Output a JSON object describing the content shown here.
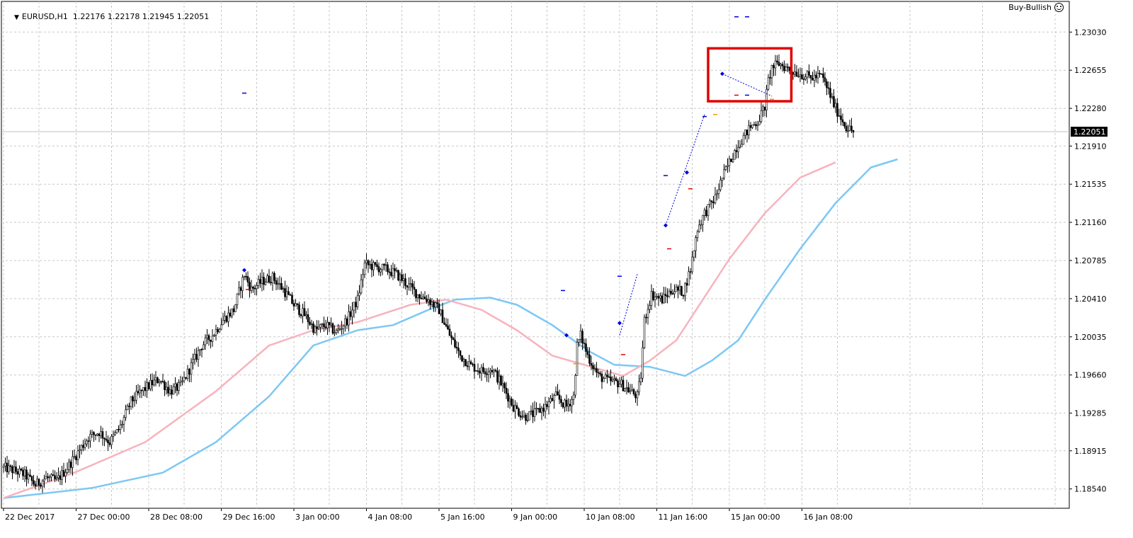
{
  "header": {
    "symbol": "EURUSD,H1",
    "ohlc": "1.22176 1.22178 1.21945 1.22051"
  },
  "expert": {
    "label": "Buy-Bullish",
    "icon": "smiley-icon"
  },
  "colors": {
    "background": "#ffffff",
    "grid": "#c8c8c8",
    "candle": "#000000",
    "ma_fast": "#f7b3bd",
    "ma_slow": "#7cc8f4",
    "highlight_box": "#e00000",
    "marker_blue": "#0000dd",
    "marker_red": "#e00000",
    "marker_orange": "#f0a000",
    "current_price_bg": "#000000"
  },
  "chart_data": {
    "type": "candlestick",
    "timeframe": "H1",
    "grid": true,
    "ylim": [
      1.1835,
      1.2322
    ],
    "y_ticks": [
      "1.23030",
      "1.22655",
      "1.22280",
      "1.21910",
      "1.21535",
      "1.21160",
      "1.20785",
      "1.20410",
      "1.20035",
      "1.19660",
      "1.19285",
      "1.18915",
      "1.18540"
    ],
    "current_price": "1.22051",
    "x_tick_labels": [
      {
        "bar": 0,
        "label": "22 Dec 2017"
      },
      {
        "bar": 41,
        "label": "27 Dec 00:00"
      },
      {
        "bar": 82,
        "label": "28 Dec 08:00"
      },
      {
        "bar": 123,
        "label": "29 Dec 16:00"
      },
      {
        "bar": 164,
        "label": "3 Jan 00:00"
      },
      {
        "bar": 205,
        "label": "4 Jan 08:00"
      },
      {
        "bar": 246,
        "label": "5 Jan 16:00"
      },
      {
        "bar": 287,
        "label": "9 Jan 00:00"
      },
      {
        "bar": 328,
        "label": "10 Jan 08:00"
      },
      {
        "bar": 369,
        "label": "11 Jan 16:00"
      },
      {
        "bar": 410,
        "label": "15 Jan 00:00"
      },
      {
        "bar": 451,
        "label": "16 Jan 08:00"
      }
    ],
    "price_path": [
      [
        0,
        1.1875
      ],
      [
        6,
        1.1872
      ],
      [
        12,
        1.1868
      ],
      [
        18,
        1.1858
      ],
      [
        24,
        1.1865
      ],
      [
        30,
        1.1862
      ],
      [
        36,
        1.1875
      ],
      [
        42,
        1.189
      ],
      [
        48,
        1.1905
      ],
      [
        54,
        1.191
      ],
      [
        60,
        1.19
      ],
      [
        66,
        1.1915
      ],
      [
        72,
        1.194
      ],
      [
        78,
        1.195
      ],
      [
        84,
        1.1958
      ],
      [
        88,
        1.1962
      ],
      [
        94,
        1.195
      ],
      [
        100,
        1.1955
      ],
      [
        106,
        1.1975
      ],
      [
        112,
        1.1995
      ],
      [
        118,
        1.2005
      ],
      [
        124,
        1.202
      ],
      [
        130,
        1.203
      ],
      [
        136,
        1.2065
      ],
      [
        140,
        1.205
      ],
      [
        146,
        1.2058
      ],
      [
        152,
        1.2062
      ],
      [
        158,
        1.205
      ],
      [
        164,
        1.2035
      ],
      [
        170,
        1.2025
      ],
      [
        176,
        1.201
      ],
      [
        182,
        1.2015
      ],
      [
        188,
        1.2008
      ],
      [
        194,
        1.202
      ],
      [
        200,
        1.204
      ],
      [
        204,
        1.2075
      ],
      [
        210,
        1.2072
      ],
      [
        216,
        1.207
      ],
      [
        222,
        1.2065
      ],
      [
        228,
        1.2055
      ],
      [
        234,
        1.2045
      ],
      [
        240,
        1.204
      ],
      [
        246,
        1.203
      ],
      [
        252,
        1.2005
      ],
      [
        258,
        1.1985
      ],
      [
        264,
        1.1975
      ],
      [
        270,
        1.197
      ],
      [
        276,
        1.1972
      ],
      [
        282,
        1.1955
      ],
      [
        288,
        1.1935
      ],
      [
        294,
        1.1925
      ],
      [
        300,
        1.1928
      ],
      [
        306,
        1.1935
      ],
      [
        312,
        1.1945
      ],
      [
        318,
        1.1935
      ],
      [
        322,
        1.1945
      ],
      [
        324,
        1.1995
      ],
      [
        326,
        1.2005
      ],
      [
        330,
        1.1985
      ],
      [
        336,
        1.1965
      ],
      [
        342,
        1.196
      ],
      [
        348,
        1.1958
      ],
      [
        354,
        1.195
      ],
      [
        358,
        1.1945
      ],
      [
        360,
        1.1965
      ],
      [
        362,
        1.202
      ],
      [
        366,
        1.2045
      ],
      [
        372,
        1.204
      ],
      [
        378,
        1.205
      ],
      [
        384,
        1.2048
      ],
      [
        388,
        1.207
      ],
      [
        392,
        1.211
      ],
      [
        396,
        1.2125
      ],
      [
        402,
        1.214
      ],
      [
        406,
        1.216
      ],
      [
        410,
        1.2175
      ],
      [
        414,
        1.219
      ],
      [
        418,
        1.22
      ],
      [
        422,
        1.221
      ],
      [
        426,
        1.2215
      ],
      [
        430,
        1.223
      ],
      [
        432,
        1.2255
      ],
      [
        434,
        1.2268
      ],
      [
        438,
        1.2272
      ],
      [
        444,
        1.2266
      ],
      [
        450,
        1.2262
      ],
      [
        456,
        1.2258
      ],
      [
        462,
        1.226
      ],
      [
        466,
        1.2245
      ],
      [
        470,
        1.2228
      ],
      [
        476,
        1.221
      ],
      [
        480,
        1.2205
      ]
    ],
    "series": [
      {
        "kind": "moving_average_fast",
        "values": [
          [
            0,
            1.1845
          ],
          [
            40,
            1.187
          ],
          [
            80,
            1.19
          ],
          [
            120,
            1.195
          ],
          [
            150,
            1.1995
          ],
          [
            175,
            1.201
          ],
          [
            200,
            1.2018
          ],
          [
            230,
            1.2035
          ],
          [
            250,
            1.204
          ],
          [
            270,
            1.203
          ],
          [
            290,
            1.201
          ],
          [
            310,
            1.1985
          ],
          [
            330,
            1.1975
          ],
          [
            350,
            1.1965
          ],
          [
            365,
            1.198
          ],
          [
            380,
            1.2
          ],
          [
            395,
            1.204
          ],
          [
            410,
            1.208
          ],
          [
            430,
            1.2125
          ],
          [
            450,
            1.216
          ],
          [
            470,
            1.2175
          ]
        ]
      },
      {
        "kind": "moving_average_slow",
        "values": [
          [
            0,
            1.1845
          ],
          [
            50,
            1.1855
          ],
          [
            90,
            1.187
          ],
          [
            120,
            1.19
          ],
          [
            150,
            1.1945
          ],
          [
            175,
            1.1995
          ],
          [
            200,
            1.201
          ],
          [
            220,
            1.2015
          ],
          [
            240,
            1.203
          ],
          [
            255,
            1.204
          ],
          [
            275,
            1.2042
          ],
          [
            290,
            1.2035
          ],
          [
            310,
            1.2015
          ],
          [
            330,
            1.199
          ],
          [
            345,
            1.1976
          ],
          [
            365,
            1.1974
          ],
          [
            385,
            1.1965
          ],
          [
            400,
            1.198
          ],
          [
            415,
            1.2
          ],
          [
            430,
            1.204
          ],
          [
            450,
            1.209
          ],
          [
            470,
            1.2135
          ],
          [
            490,
            1.217
          ],
          [
            505,
            1.2178
          ]
        ]
      }
    ],
    "markers": [
      {
        "bar": 136,
        "price": 1.2243,
        "color": "blue",
        "shape": "dash"
      },
      {
        "bar": 136,
        "price": 1.2069,
        "color": "blue",
        "shape": "diamond"
      },
      {
        "bar": 138,
        "price": 1.205,
        "color": "red",
        "shape": "dash"
      },
      {
        "bar": 316,
        "price": 1.2049,
        "color": "blue",
        "shape": "dash"
      },
      {
        "bar": 318,
        "price": 1.2005,
        "color": "blue",
        "shape": "diamond"
      },
      {
        "bar": 323,
        "price": 1.1977,
        "color": "orange",
        "shape": "dash"
      },
      {
        "bar": 348,
        "price": 1.2063,
        "color": "blue",
        "shape": "dash"
      },
      {
        "bar": 348,
        "price": 1.2017,
        "color": "blue",
        "shape": "diamond"
      },
      {
        "bar": 350,
        "price": 1.1986,
        "color": "red",
        "shape": "dash"
      },
      {
        "bar": 374,
        "price": 1.2113,
        "color": "blue",
        "shape": "diamond"
      },
      {
        "bar": 376,
        "price": 1.209,
        "color": "red",
        "shape": "dash"
      },
      {
        "bar": 386,
        "price": 1.2165,
        "color": "blue",
        "shape": "diamond"
      },
      {
        "bar": 388,
        "price": 1.2149,
        "color": "red",
        "shape": "dash"
      },
      {
        "bar": 374,
        "price": 1.2162,
        "color": "blue",
        "shape": "dash"
      },
      {
        "bar": 396,
        "price": 1.222,
        "color": "blue",
        "shape": "dash"
      },
      {
        "bar": 402,
        "price": 1.2222,
        "color": "orange",
        "shape": "dash"
      },
      {
        "bar": 406,
        "price": 1.2262,
        "color": "blue",
        "shape": "diamond"
      },
      {
        "bar": 414,
        "price": 1.2318,
        "color": "blue",
        "shape": "dash"
      },
      {
        "bar": 414,
        "price": 1.2241,
        "color": "red",
        "shape": "dash"
      },
      {
        "bar": 420,
        "price": 1.2318,
        "color": "blue",
        "shape": "dash"
      },
      {
        "bar": 420,
        "price": 1.2241,
        "color": "blue",
        "shape": "dash"
      },
      {
        "bar": 434,
        "price": 1.2237,
        "color": "orange",
        "shape": "dash"
      }
    ],
    "signal_lines": [
      {
        "from": [
          348,
          1.2005
        ],
        "to": [
          358,
          1.2065
        ],
        "color": "blue"
      },
      {
        "from": [
          374,
          1.2113
        ],
        "to": [
          396,
          1.2222
        ],
        "color": "blue"
      },
      {
        "from": [
          406,
          1.2262
        ],
        "to": [
          434,
          1.224
        ],
        "color": "blue"
      }
    ],
    "highlight_box": {
      "bar_from": 398,
      "bar_to": 445,
      "price_high": 1.2287,
      "price_low": 1.2235
    }
  }
}
